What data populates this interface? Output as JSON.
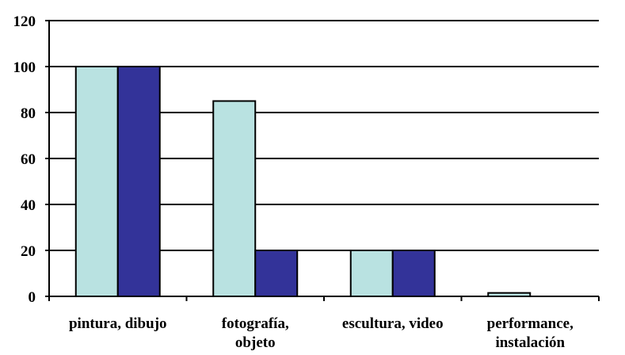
{
  "chart_data": {
    "type": "bar",
    "categories": [
      [
        "pintura, dibujo"
      ],
      [
        "fotografía,",
        "objeto"
      ],
      [
        "escultura, video"
      ],
      [
        "performance,",
        "instalación"
      ]
    ],
    "series": [
      {
        "values": [
          100,
          85,
          20,
          1.5
        ],
        "color": "#b9e2e1"
      },
      {
        "values": [
          100,
          20,
          20,
          0
        ],
        "color": "#333399"
      }
    ],
    "yticks": [
      "0",
      "20",
      "40",
      "60",
      "80",
      "100",
      "120"
    ],
    "ylim": [
      0,
      120
    ],
    "grid": true,
    "legend": "none",
    "title": "",
    "xlabel": "",
    "ylabel": ""
  }
}
